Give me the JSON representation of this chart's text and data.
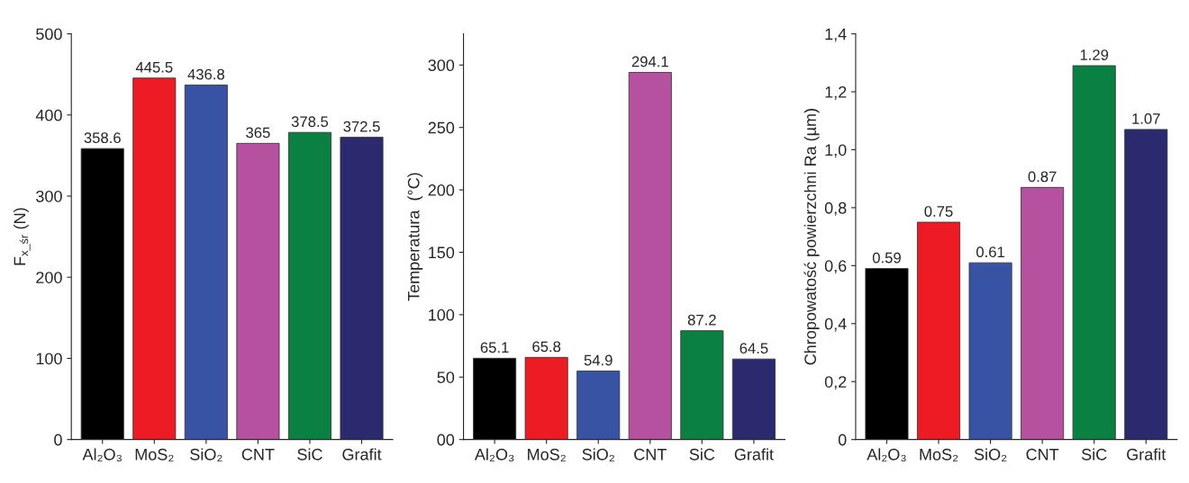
{
  "chart_data": [
    {
      "type": "bar",
      "ylabel": "F$_{x_śr}$ (N)",
      "categories": [
        "Al₂O₃",
        "MoS₂",
        "SiO₂",
        "CNT",
        "SiC",
        "Grafit"
      ],
      "values": [
        358.6,
        445.5,
        436.8,
        365,
        378.5,
        372.5
      ],
      "colors": [
        "#000000",
        "#ed1c24",
        "#3953a4",
        "#b5519f",
        "#0b8043",
        "#2b2a6e"
      ],
      "ylim": [
        0,
        500
      ],
      "yticks": [
        0,
        100,
        200,
        300,
        400,
        500
      ],
      "data_labels": true,
      "grid": false,
      "legend": false
    },
    {
      "type": "bar",
      "ylabel": "Temperatura  (°C)",
      "categories": [
        "Al₂O₃",
        "MoS₂",
        "SiO₂",
        "CNT",
        "SiC",
        "Grafit"
      ],
      "values": [
        65.1,
        65.8,
        54.9,
        294.1,
        87.2,
        64.5
      ],
      "colors": [
        "#000000",
        "#ed1c24",
        "#3953a4",
        "#b5519f",
        "#0b8043",
        "#2b2a6e"
      ],
      "ylim": [
        0,
        325
      ],
      "yticks": [
        {
          "value": 0,
          "label": "00"
        },
        50,
        100,
        150,
        200,
        250,
        300
      ],
      "data_labels": true,
      "grid": false,
      "legend": false
    },
    {
      "type": "bar",
      "ylabel": "Chropowatość powierzchni Ra (µm)",
      "categories": [
        "Al₂O₃",
        "MoS₂",
        "SiO₂",
        "CNT",
        "SiC",
        "Grafit"
      ],
      "values": [
        0.59,
        0.75,
        0.61,
        0.87,
        1.29,
        1.07
      ],
      "colors": [
        "#000000",
        "#ed1c24",
        "#3953a4",
        "#b5519f",
        "#0b8043",
        "#2b2a6e"
      ],
      "ylim": [
        0,
        1.4
      ],
      "yticks": [
        0,
        {
          "value": 0.2,
          "label": "0,2"
        },
        {
          "value": 0.4,
          "label": "0,4"
        },
        {
          "value": 0.6,
          "label": "0,6"
        },
        {
          "value": 0.8,
          "label": "0,8"
        },
        {
          "value": 1.0,
          "label": "1,0"
        },
        {
          "value": 1.2,
          "label": "1,2"
        },
        {
          "value": 1.4,
          "label": "1,4"
        }
      ],
      "data_labels": true,
      "grid": false,
      "legend": false
    }
  ]
}
